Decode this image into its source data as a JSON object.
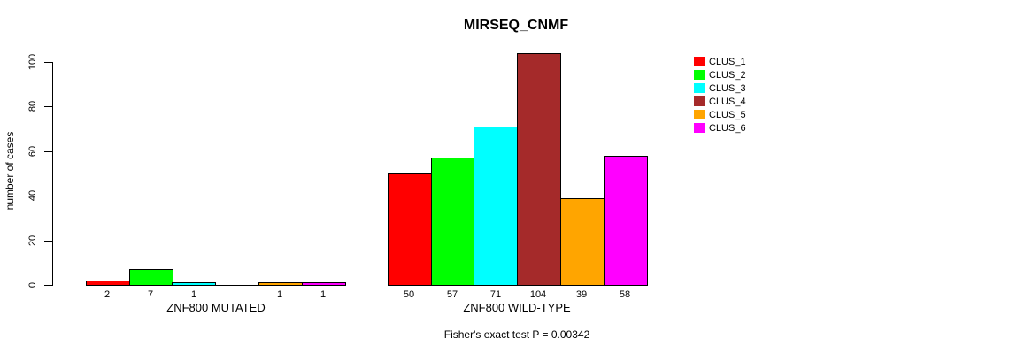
{
  "title": "MIRSEQ_CNMF",
  "footnote": "Fisher's exact test P = 0.00342",
  "y_axis": {
    "label": "number of cases",
    "ticks": [
      0,
      20,
      40,
      60,
      80,
      100
    ]
  },
  "legend": {
    "items": [
      {
        "label": "CLUS_1",
        "color": "#FF0000"
      },
      {
        "label": "CLUS_2",
        "color": "#00FF00"
      },
      {
        "label": "CLUS_3",
        "color": "#00FFFF"
      },
      {
        "label": "CLUS_4",
        "color": "#A52A2A"
      },
      {
        "label": "CLUS_5",
        "color": "#FFA500"
      },
      {
        "label": "CLUS_6",
        "color": "#FF00FF"
      }
    ]
  },
  "chart_data": {
    "type": "bar",
    "title": "MIRSEQ_CNMF",
    "xlabel": "",
    "ylabel": "number of cases",
    "ylim": [
      0,
      100
    ],
    "grid": false,
    "legend_position": "right",
    "clusters": [
      "CLUS_1",
      "CLUS_2",
      "CLUS_3",
      "CLUS_4",
      "CLUS_5",
      "CLUS_6"
    ],
    "colors": [
      "#FF0000",
      "#00FF00",
      "#00FFFF",
      "#A52A2A",
      "#FFA500",
      "#FF00FF"
    ],
    "groups": [
      {
        "label": "ZNF800 MUTATED",
        "values": [
          2,
          7,
          1,
          0,
          1,
          1
        ]
      },
      {
        "label": "ZNF800 WILD-TYPE",
        "values": [
          50,
          57,
          71,
          104,
          39,
          58
        ]
      }
    ],
    "annotation": "Fisher's exact test P = 0.00342"
  }
}
